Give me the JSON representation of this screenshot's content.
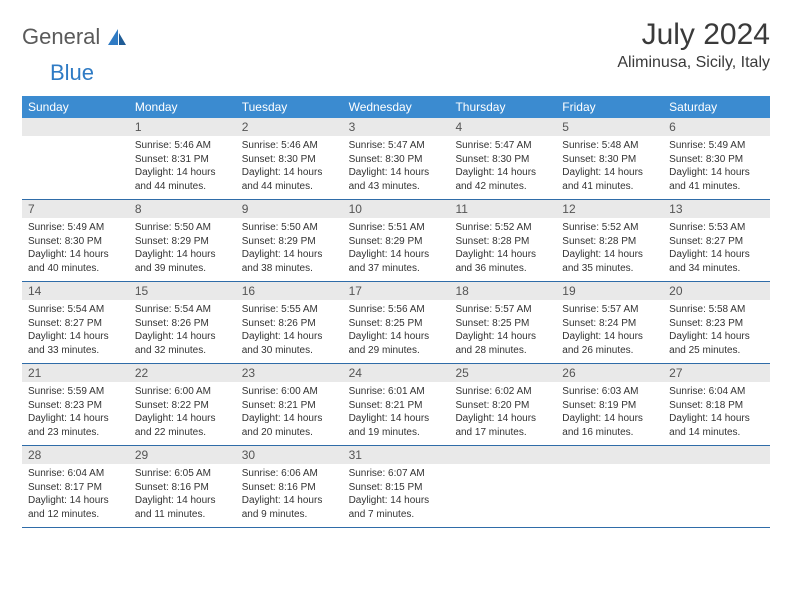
{
  "brand": {
    "part1": "General",
    "part2": "Blue"
  },
  "title": "July 2024",
  "location": "Aliminusa, Sicily, Italy",
  "colors": {
    "header_bg": "#3b8bd0",
    "header_text": "#ffffff",
    "daynum_bg": "#e9e9e9",
    "daynum_text": "#555555",
    "body_text": "#333333",
    "rule": "#2f6ca8",
    "brand_blue": "#2f7bc4",
    "brand_gray": "#5a5a5a"
  },
  "weekdays": [
    "Sunday",
    "Monday",
    "Tuesday",
    "Wednesday",
    "Thursday",
    "Friday",
    "Saturday"
  ],
  "weeks": [
    [
      null,
      {
        "n": "1",
        "sunrise": "5:46 AM",
        "sunset": "8:31 PM",
        "daylight": "14 hours and 44 minutes."
      },
      {
        "n": "2",
        "sunrise": "5:46 AM",
        "sunset": "8:30 PM",
        "daylight": "14 hours and 44 minutes."
      },
      {
        "n": "3",
        "sunrise": "5:47 AM",
        "sunset": "8:30 PM",
        "daylight": "14 hours and 43 minutes."
      },
      {
        "n": "4",
        "sunrise": "5:47 AM",
        "sunset": "8:30 PM",
        "daylight": "14 hours and 42 minutes."
      },
      {
        "n": "5",
        "sunrise": "5:48 AM",
        "sunset": "8:30 PM",
        "daylight": "14 hours and 41 minutes."
      },
      {
        "n": "6",
        "sunrise": "5:49 AM",
        "sunset": "8:30 PM",
        "daylight": "14 hours and 41 minutes."
      }
    ],
    [
      {
        "n": "7",
        "sunrise": "5:49 AM",
        "sunset": "8:30 PM",
        "daylight": "14 hours and 40 minutes."
      },
      {
        "n": "8",
        "sunrise": "5:50 AM",
        "sunset": "8:29 PM",
        "daylight": "14 hours and 39 minutes."
      },
      {
        "n": "9",
        "sunrise": "5:50 AM",
        "sunset": "8:29 PM",
        "daylight": "14 hours and 38 minutes."
      },
      {
        "n": "10",
        "sunrise": "5:51 AM",
        "sunset": "8:29 PM",
        "daylight": "14 hours and 37 minutes."
      },
      {
        "n": "11",
        "sunrise": "5:52 AM",
        "sunset": "8:28 PM",
        "daylight": "14 hours and 36 minutes."
      },
      {
        "n": "12",
        "sunrise": "5:52 AM",
        "sunset": "8:28 PM",
        "daylight": "14 hours and 35 minutes."
      },
      {
        "n": "13",
        "sunrise": "5:53 AM",
        "sunset": "8:27 PM",
        "daylight": "14 hours and 34 minutes."
      }
    ],
    [
      {
        "n": "14",
        "sunrise": "5:54 AM",
        "sunset": "8:27 PM",
        "daylight": "14 hours and 33 minutes."
      },
      {
        "n": "15",
        "sunrise": "5:54 AM",
        "sunset": "8:26 PM",
        "daylight": "14 hours and 32 minutes."
      },
      {
        "n": "16",
        "sunrise": "5:55 AM",
        "sunset": "8:26 PM",
        "daylight": "14 hours and 30 minutes."
      },
      {
        "n": "17",
        "sunrise": "5:56 AM",
        "sunset": "8:25 PM",
        "daylight": "14 hours and 29 minutes."
      },
      {
        "n": "18",
        "sunrise": "5:57 AM",
        "sunset": "8:25 PM",
        "daylight": "14 hours and 28 minutes."
      },
      {
        "n": "19",
        "sunrise": "5:57 AM",
        "sunset": "8:24 PM",
        "daylight": "14 hours and 26 minutes."
      },
      {
        "n": "20",
        "sunrise": "5:58 AM",
        "sunset": "8:23 PM",
        "daylight": "14 hours and 25 minutes."
      }
    ],
    [
      {
        "n": "21",
        "sunrise": "5:59 AM",
        "sunset": "8:23 PM",
        "daylight": "14 hours and 23 minutes."
      },
      {
        "n": "22",
        "sunrise": "6:00 AM",
        "sunset": "8:22 PM",
        "daylight": "14 hours and 22 minutes."
      },
      {
        "n": "23",
        "sunrise": "6:00 AM",
        "sunset": "8:21 PM",
        "daylight": "14 hours and 20 minutes."
      },
      {
        "n": "24",
        "sunrise": "6:01 AM",
        "sunset": "8:21 PM",
        "daylight": "14 hours and 19 minutes."
      },
      {
        "n": "25",
        "sunrise": "6:02 AM",
        "sunset": "8:20 PM",
        "daylight": "14 hours and 17 minutes."
      },
      {
        "n": "26",
        "sunrise": "6:03 AM",
        "sunset": "8:19 PM",
        "daylight": "14 hours and 16 minutes."
      },
      {
        "n": "27",
        "sunrise": "6:04 AM",
        "sunset": "8:18 PM",
        "daylight": "14 hours and 14 minutes."
      }
    ],
    [
      {
        "n": "28",
        "sunrise": "6:04 AM",
        "sunset": "8:17 PM",
        "daylight": "14 hours and 12 minutes."
      },
      {
        "n": "29",
        "sunrise": "6:05 AM",
        "sunset": "8:16 PM",
        "daylight": "14 hours and 11 minutes."
      },
      {
        "n": "30",
        "sunrise": "6:06 AM",
        "sunset": "8:16 PM",
        "daylight": "14 hours and 9 minutes."
      },
      {
        "n": "31",
        "sunrise": "6:07 AM",
        "sunset": "8:15 PM",
        "daylight": "14 hours and 7 minutes."
      },
      null,
      null,
      null
    ]
  ],
  "labels": {
    "sunrise": "Sunrise:",
    "sunset": "Sunset:",
    "daylight": "Daylight:"
  }
}
